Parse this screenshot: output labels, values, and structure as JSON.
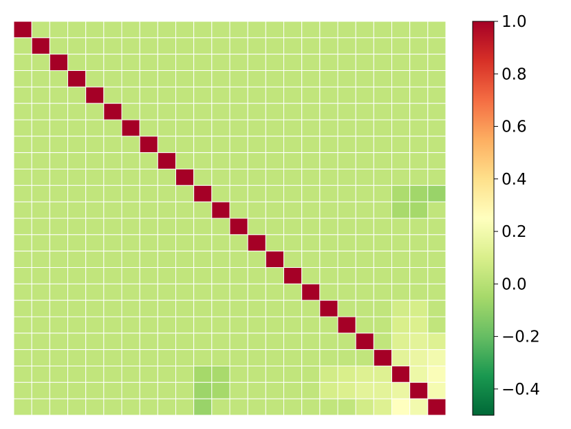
{
  "chart_data": {
    "type": "heatmap",
    "rows": 24,
    "cols": 24,
    "diagonal_value": 1.0,
    "off_diagonal_value": 0.03,
    "cell_overrides": [
      {
        "r": 10,
        "c": 22,
        "v": -0.06
      },
      {
        "r": 10,
        "c": 23,
        "v": -0.08
      },
      {
        "r": 11,
        "c": 22,
        "v": -0.05
      },
      {
        "r": 17,
        "c": 21,
        "v": 0.08
      },
      {
        "r": 17,
        "c": 22,
        "v": 0.09
      },
      {
        "r": 18,
        "c": 21,
        "v": 0.1
      },
      {
        "r": 18,
        "c": 22,
        "v": 0.11
      },
      {
        "r": 19,
        "c": 21,
        "v": 0.12
      },
      {
        "r": 19,
        "c": 22,
        "v": 0.14
      },
      {
        "r": 19,
        "c": 23,
        "v": 0.12
      },
      {
        "r": 20,
        "c": 21,
        "v": 0.14
      },
      {
        "r": 20,
        "c": 22,
        "v": 0.17
      },
      {
        "r": 20,
        "c": 23,
        "v": 0.2
      },
      {
        "r": 21,
        "c": 20,
        "v": 0.12
      },
      {
        "r": 21,
        "c": 22,
        "v": 0.18
      },
      {
        "r": 21,
        "c": 23,
        "v": 0.23
      },
      {
        "r": 22,
        "c": 20,
        "v": 0.14
      },
      {
        "r": 22,
        "c": 21,
        "v": 0.17
      },
      {
        "r": 22,
        "c": 23,
        "v": 0.21
      },
      {
        "r": 23,
        "c": 19,
        "v": 0.08
      },
      {
        "r": 23,
        "c": 20,
        "v": 0.12
      },
      {
        "r": 23,
        "c": 21,
        "v": 0.25
      },
      {
        "r": 23,
        "c": 22,
        "v": 0.2
      },
      {
        "r": 21,
        "c": 10,
        "v": -0.05
      },
      {
        "r": 22,
        "c": 10,
        "v": -0.07
      },
      {
        "r": 23,
        "c": 10,
        "v": -0.08
      },
      {
        "r": 21,
        "c": 11,
        "v": -0.04
      },
      {
        "r": 10,
        "c": 21,
        "v": -0.03
      }
    ],
    "colorbar": {
      "colormap": "RdYlGn_r",
      "vmin": -0.5,
      "vmax": 1.0,
      "ticks": [
        1.0,
        0.8,
        0.6,
        0.4,
        0.2,
        0.0,
        -0.2,
        -0.4
      ],
      "tick_labels": [
        "1.0",
        "0.8",
        "0.6",
        "0.4",
        "0.2",
        "0.0",
        "−0.2",
        "−0.4"
      ]
    },
    "title": "",
    "xlabel": "",
    "ylabel": "",
    "grid": true
  }
}
